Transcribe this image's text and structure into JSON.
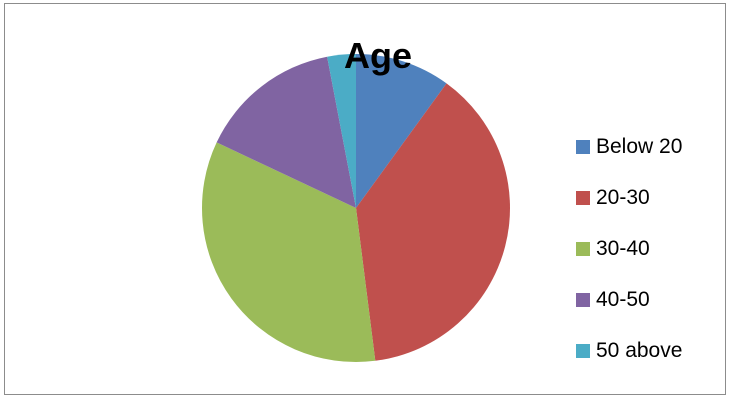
{
  "chart_data": {
    "type": "pie",
    "title": "Age",
    "categories": [
      "Below 20",
      "20-30",
      "30-40",
      "40-50",
      "50 above"
    ],
    "values": [
      10,
      38,
      34,
      15,
      3
    ],
    "unit": "",
    "colors": [
      "#4f81bd",
      "#c0504d",
      "#9bbb59",
      "#8064a2",
      "#4bacc6"
    ],
    "start_angle": "top",
    "direction": "clockwise",
    "legend_position": "right"
  }
}
